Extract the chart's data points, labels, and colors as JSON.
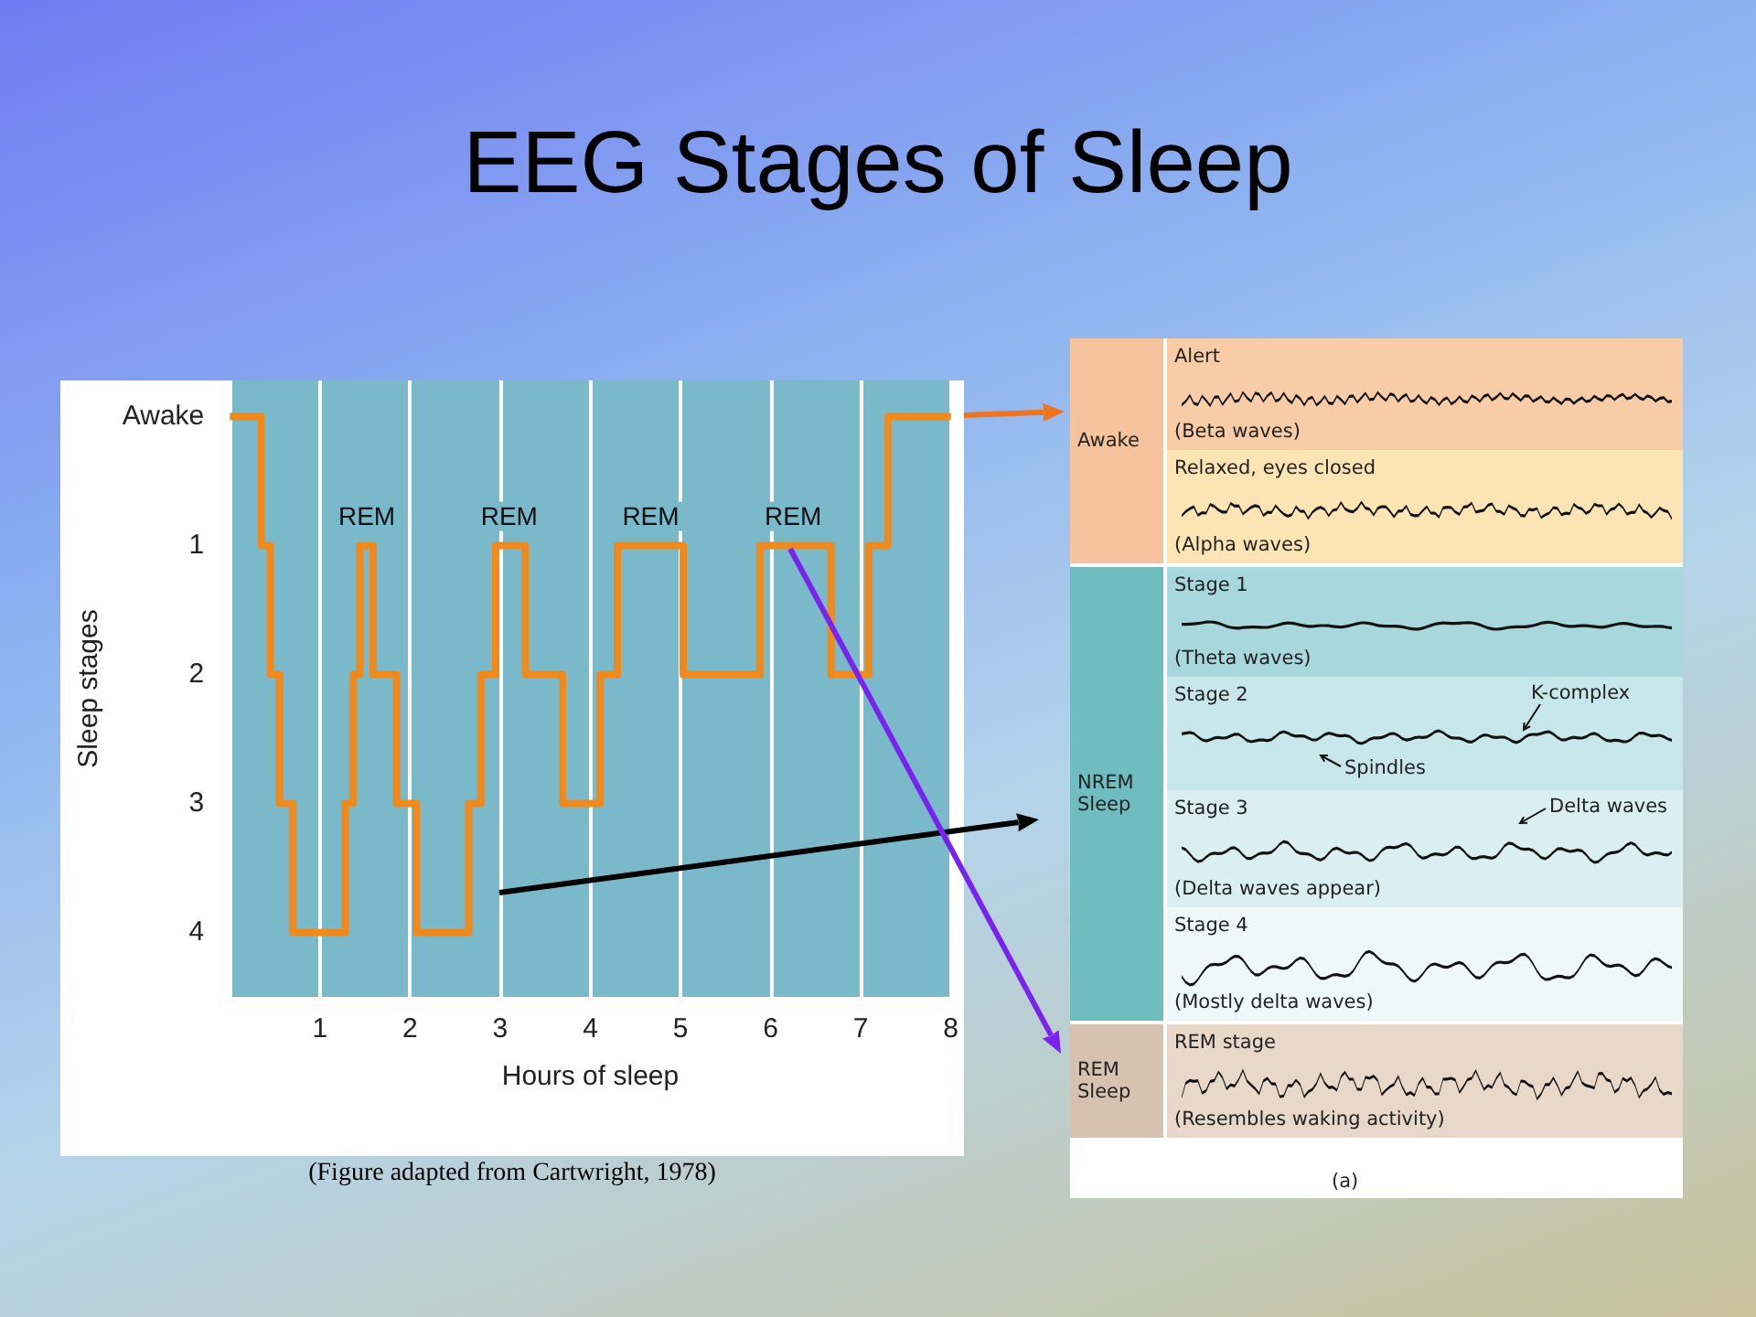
{
  "chart_data": [
    {
      "type": "step",
      "title": "EEG Stages of Sleep",
      "xlabel": "Hours of sleep",
      "ylabel": "Sleep stages",
      "x": [
        0,
        0.35,
        0.45,
        0.55,
        0.7,
        1.28,
        1.37,
        1.44,
        1.59,
        1.85,
        2.07,
        2.65,
        2.79,
        2.95,
        3.28,
        3.69,
        4.11,
        4.3,
        5.03,
        5.88,
        6.67,
        7.09,
        7.3,
        8
      ],
      "values": [
        0,
        1,
        2,
        3,
        4,
        3,
        2,
        1,
        2,
        3,
        4,
        3,
        2,
        1,
        2,
        3,
        2,
        1,
        2,
        1,
        2,
        1,
        0,
        0
      ],
      "color": "#f08a1c",
      "xlim": [
        0,
        8
      ],
      "xticks": [
        1,
        2,
        3,
        4,
        5,
        6,
        7,
        8
      ],
      "ylim": [
        4.5,
        -0.28
      ],
      "yticks": [
        {
          "value": 0,
          "label": "Awake"
        },
        1,
        2,
        3,
        4
      ],
      "grid": "x",
      "annotations": [
        {
          "text": "REM",
          "x": 1.52,
          "y": 1
        },
        {
          "text": "REM",
          "x": 3.1,
          "y": 1
        },
        {
          "text": "REM",
          "x": 4.67,
          "y": 1
        },
        {
          "text": "REM",
          "x": 6.25,
          "y": 1
        },
        "(Figure adapted from Cartwright, 1978)"
      ]
    },
    {
      "type": "other",
      "annotations": [
        "Awake",
        "Alert",
        "(Beta waves)",
        "Relaxed, eyes closed",
        "(Alpha waves)",
        "NREM Sleep",
        "Stage 1",
        "(Theta waves)",
        "Stage 2",
        "K-complex",
        "Spindles",
        "Stage 3",
        "Delta waves",
        "(Delta waves appear)",
        "Stage 4",
        "(Mostly delta waves)",
        "REM Sleep",
        "REM stage",
        "(Resembles waking activity)",
        "(a)"
      ]
    }
  ]
}
